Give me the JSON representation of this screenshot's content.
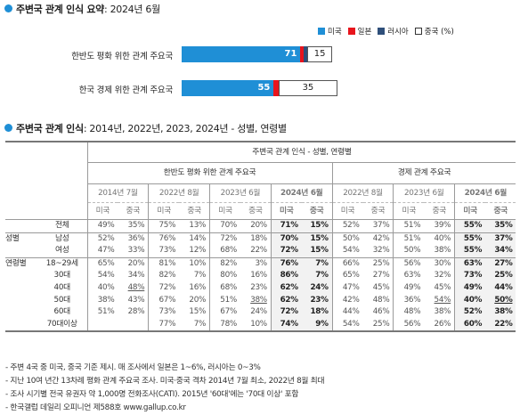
{
  "section1": {
    "title": "주변국 관계 인식 요약",
    "title_rest": ": 2024년 6월",
    "legend": [
      {
        "label": "미국",
        "color": "#1f8fd6"
      },
      {
        "label": "일본",
        "color": "#e8141c"
      },
      {
        "label": "러시아",
        "color": "#2f4f7a"
      },
      {
        "label": "중국 (%)",
        "color": "#ffffff"
      }
    ]
  },
  "chart_data": {
    "type": "bar",
    "orientation": "horizontal",
    "stacked": true,
    "categories": [
      "한반도 평화 위한 관계 주요국",
      "한국 경제 위한 관계 주요국"
    ],
    "series": [
      {
        "name": "미국",
        "values": [
          71,
          55
        ],
        "color": "#1f8fd6"
      },
      {
        "name": "일본",
        "values": [
          2,
          3
        ],
        "color": "#e8141c"
      },
      {
        "name": "러시아",
        "values": [
          2,
          0
        ],
        "color": "#2f4f7a"
      },
      {
        "name": "중국 (%)",
        "values": [
          15,
          35
        ],
        "color": "#ffffff"
      }
    ],
    "data_labels": {
      "미국": [
        "71",
        "55"
      ],
      "중국 (%)": [
        "15",
        "35"
      ]
    }
  },
  "section2": {
    "title": "주변국 관계 인식",
    "title_rest": ": 2014년, 2022년, 2023, 2024년 - 성별, 연령별",
    "table_title": "주변국 관계 인식 - 성별, 연령별",
    "group1": "한반도 평화 위한 관계 주요국",
    "group2": "경제 관계 주요국",
    "g1_periods": [
      "2014년 7월",
      "2022년 8월",
      "2023년 6월",
      "2024년 6월"
    ],
    "g2_periods": [
      "2022년 8월",
      "2023년 6월",
      "2024년 6월"
    ],
    "col_us": "미국",
    "col_cn": "중국",
    "rows": [
      {
        "g": "",
        "l": "전체",
        "v": [
          "49%",
          "35%",
          "75%",
          "13%",
          "70%",
          "20%",
          "71%",
          "15%",
          "52%",
          "37%",
          "51%",
          "39%",
          "55%",
          "35%"
        ]
      },
      {
        "g": "성별",
        "l": "남성",
        "v": [
          "52%",
          "36%",
          "76%",
          "14%",
          "72%",
          "18%",
          "70%",
          "15%",
          "50%",
          "42%",
          "51%",
          "40%",
          "55%",
          "37%"
        ]
      },
      {
        "g": "",
        "l": "여성",
        "v": [
          "47%",
          "33%",
          "73%",
          "12%",
          "68%",
          "22%",
          "72%",
          "15%",
          "54%",
          "32%",
          "50%",
          "38%",
          "55%",
          "34%"
        ]
      },
      {
        "g": "연령별",
        "l": "18~29세",
        "v": [
          "65%",
          "20%",
          "81%",
          "10%",
          "82%",
          "3%",
          "76%",
          "7%",
          "66%",
          "25%",
          "56%",
          "30%",
          "63%",
          "27%"
        ]
      },
      {
        "g": "",
        "l": "30대",
        "v": [
          "54%",
          "34%",
          "82%",
          "7%",
          "80%",
          "16%",
          "86%",
          "7%",
          "65%",
          "27%",
          "63%",
          "32%",
          "73%",
          "25%"
        ]
      },
      {
        "g": "",
        "l": "40대",
        "v": [
          "40%",
          "48%",
          "72%",
          "16%",
          "68%",
          "23%",
          "62%",
          "24%",
          "47%",
          "45%",
          "49%",
          "45%",
          "49%",
          "44%"
        ]
      },
      {
        "g": "",
        "l": "50대",
        "v": [
          "38%",
          "43%",
          "67%",
          "20%",
          "51%",
          "38%",
          "62%",
          "23%",
          "42%",
          "48%",
          "36%",
          "54%",
          "40%",
          "50%"
        ]
      },
      {
        "g": "",
        "l": "60대",
        "v": [
          "51%",
          "28%",
          "73%",
          "15%",
          "67%",
          "24%",
          "72%",
          "18%",
          "44%",
          "46%",
          "48%",
          "38%",
          "52%",
          "38%"
        ]
      },
      {
        "g": "",
        "l": "70대이상",
        "v": [
          "",
          "",
          "77%",
          "7%",
          "78%",
          "10%",
          "74%",
          "9%",
          "54%",
          "25%",
          "56%",
          "26%",
          "60%",
          "22%"
        ]
      }
    ],
    "underlined": {
      "5": [
        1
      ],
      "6": [
        5,
        11,
        13
      ]
    }
  },
  "notes": [
    "- 주변 4국 중 미국, 중국 기준 제시. 매 조사에서 일본은 1~6%, 러시아는 0~3%",
    "- 지난 10여 년간 13차례 평화 관계 주요국 조사. 미국·중국 격차 2014년 7월 최소, 2022년 8월 최대",
    "- 조사 시기별 전국 유권자 약 1,000명 전화조사(CATI). 2015년 '60대'에는 '70대 이상' 포함",
    "- 한국갤럽 데일리 오피니언 제588호 www.gallup.co.kr"
  ]
}
